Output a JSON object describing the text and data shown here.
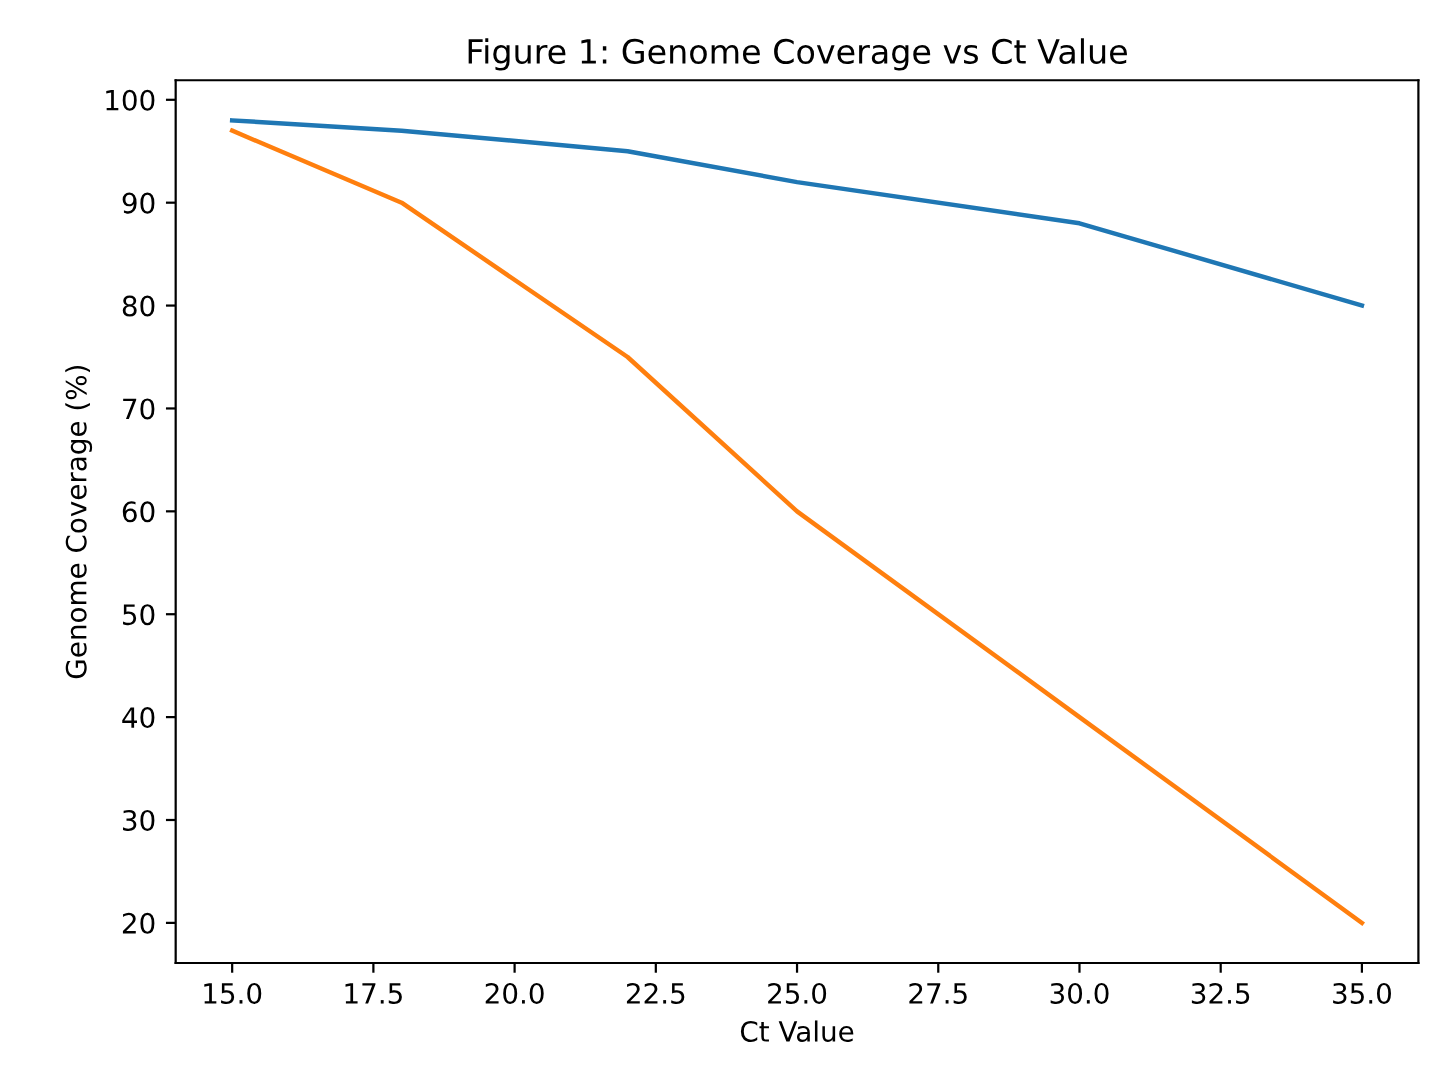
{
  "chart_data": {
    "type": "line",
    "title": "Figure 1: Genome Coverage vs Ct Value",
    "xlabel": "Ct Value",
    "ylabel": "Genome Coverage (%)",
    "x": [
      15,
      18,
      22,
      25,
      30,
      35
    ],
    "series": [
      {
        "color": "#1f77b4",
        "values": [
          98,
          97,
          95,
          92,
          88,
          80
        ]
      },
      {
        "color": "#ff7f0e",
        "values": [
          97,
          90,
          75,
          60,
          40,
          20
        ]
      }
    ],
    "xlim": [
      14,
      36
    ],
    "ylim": [
      16.1,
      101.9
    ],
    "xticks": [
      {
        "value": 15,
        "label": "15.0"
      },
      {
        "value": 17.5,
        "label": "17.5"
      },
      {
        "value": 20,
        "label": "20.0"
      },
      {
        "value": 22.5,
        "label": "22.5"
      },
      {
        "value": 25,
        "label": "25.0"
      },
      {
        "value": 27.5,
        "label": "27.5"
      },
      {
        "value": 30,
        "label": "30.0"
      },
      {
        "value": 32.5,
        "label": "32.5"
      },
      {
        "value": 35,
        "label": "35.0"
      }
    ],
    "yticks": [
      20,
      30,
      40,
      50,
      60,
      70,
      80,
      90,
      100
    ],
    "grid": false,
    "legend": false
  }
}
